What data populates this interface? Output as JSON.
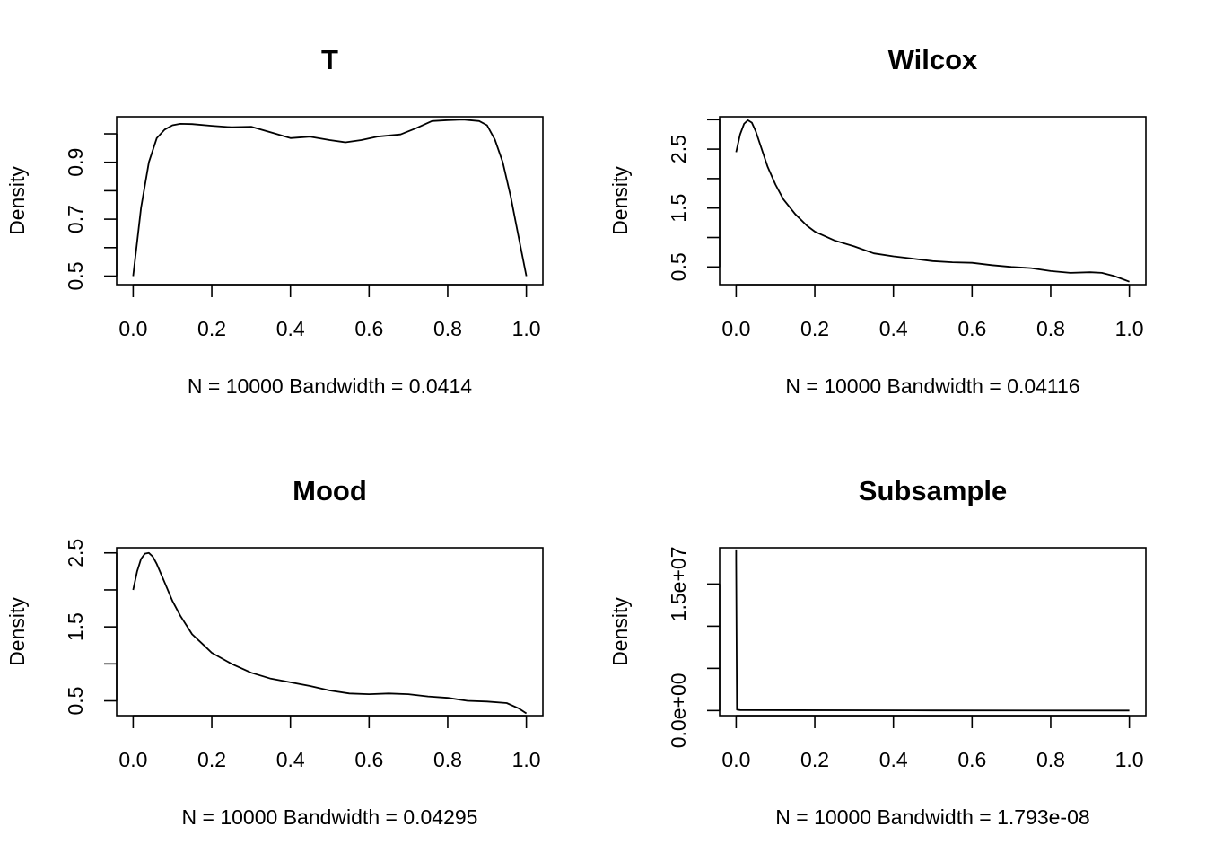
{
  "chart_data": [
    {
      "type": "line",
      "title": "T",
      "xlabel": "N = 10000   Bandwidth = 0.0414",
      "ylabel": "Density",
      "xlim": [
        -0.042,
        1.042
      ],
      "ylim": [
        0.47,
        1.06
      ],
      "x_ticks": [
        0,
        0.2,
        0.4,
        0.6,
        0.8,
        1.0
      ],
      "x_tick_labels": [
        "0.0",
        "0.2",
        "0.4",
        "0.6",
        "0.8",
        "1.0"
      ],
      "y_ticks": [
        0.5,
        0.6,
        0.7,
        0.8,
        0.9,
        1.0
      ],
      "y_tick_labels": [
        "0.5",
        "",
        "0.7",
        "",
        "0.9",
        ""
      ],
      "series": [
        {
          "x": [
            0,
            0.02,
            0.04,
            0.06,
            0.08,
            0.1,
            0.12,
            0.15,
            0.2,
            0.25,
            0.3,
            0.35,
            0.4,
            0.45,
            0.5,
            0.54,
            0.58,
            0.62,
            0.68,
            0.72,
            0.76,
            0.8,
            0.84,
            0.88,
            0.9,
            0.92,
            0.94,
            0.96,
            0.98,
            1.0
          ],
          "y": [
            0.5,
            0.74,
            0.9,
            0.985,
            1.015,
            1.03,
            1.035,
            1.034,
            1.028,
            1.023,
            1.025,
            1.005,
            0.985,
            0.99,
            0.978,
            0.97,
            0.978,
            0.99,
            0.998,
            1.02,
            1.045,
            1.048,
            1.05,
            1.045,
            1.03,
            0.98,
            0.9,
            0.78,
            0.64,
            0.5
          ]
        }
      ]
    },
    {
      "type": "line",
      "title": "Wilcox",
      "xlabel": "N = 10000   Bandwidth = 0.04116",
      "ylabel": "Density",
      "xlim": [
        -0.042,
        1.042
      ],
      "ylim": [
        0.2,
        3.05
      ],
      "x_ticks": [
        0,
        0.2,
        0.4,
        0.6,
        0.8,
        1.0
      ],
      "x_tick_labels": [
        "0.0",
        "0.2",
        "0.4",
        "0.6",
        "0.8",
        "1.0"
      ],
      "y_ticks": [
        0.5,
        1.0,
        1.5,
        2.0,
        2.5,
        3.0
      ],
      "y_tick_labels": [
        "0.5",
        "",
        "1.5",
        "",
        "2.5",
        ""
      ],
      "series": [
        {
          "x": [
            0,
            0.01,
            0.02,
            0.03,
            0.04,
            0.05,
            0.06,
            0.08,
            0.1,
            0.12,
            0.15,
            0.18,
            0.2,
            0.25,
            0.3,
            0.35,
            0.4,
            0.45,
            0.5,
            0.55,
            0.6,
            0.65,
            0.7,
            0.75,
            0.8,
            0.85,
            0.9,
            0.93,
            0.96,
            0.98,
            1.0
          ],
          "y": [
            2.45,
            2.75,
            2.93,
            2.99,
            2.95,
            2.8,
            2.6,
            2.2,
            1.9,
            1.65,
            1.4,
            1.2,
            1.1,
            0.95,
            0.85,
            0.73,
            0.68,
            0.64,
            0.6,
            0.58,
            0.57,
            0.53,
            0.5,
            0.48,
            0.43,
            0.4,
            0.41,
            0.4,
            0.35,
            0.3,
            0.25
          ]
        }
      ]
    },
    {
      "type": "line",
      "title": "Mood",
      "xlabel": "N = 10000   Bandwidth = 0.04295",
      "ylabel": "Density",
      "xlim": [
        -0.042,
        1.042
      ],
      "ylim": [
        0.3,
        2.57
      ],
      "x_ticks": [
        0,
        0.2,
        0.4,
        0.6,
        0.8,
        1.0
      ],
      "x_tick_labels": [
        "0.0",
        "0.2",
        "0.4",
        "0.6",
        "0.8",
        "1.0"
      ],
      "y_ticks": [
        0.5,
        1.0,
        1.5,
        2.0,
        2.5
      ],
      "y_tick_labels": [
        "0.5",
        "",
        "1.5",
        "",
        "2.5"
      ],
      "series": [
        {
          "x": [
            0,
            0.01,
            0.02,
            0.03,
            0.04,
            0.05,
            0.06,
            0.08,
            0.1,
            0.12,
            0.15,
            0.18,
            0.2,
            0.25,
            0.3,
            0.35,
            0.4,
            0.45,
            0.5,
            0.55,
            0.6,
            0.65,
            0.7,
            0.75,
            0.8,
            0.85,
            0.9,
            0.95,
            0.98,
            1.0
          ],
          "y": [
            2.0,
            2.25,
            2.42,
            2.49,
            2.5,
            2.45,
            2.35,
            2.1,
            1.85,
            1.65,
            1.4,
            1.25,
            1.15,
            1.0,
            0.88,
            0.8,
            0.75,
            0.7,
            0.64,
            0.6,
            0.59,
            0.6,
            0.59,
            0.56,
            0.54,
            0.5,
            0.49,
            0.47,
            0.4,
            0.33
          ]
        }
      ]
    },
    {
      "type": "line",
      "title": "Subsample",
      "xlabel": "N = 10000   Bandwidth = 1.793e-08",
      "ylabel": "Density",
      "xlim": [
        -0.042,
        1.042
      ],
      "ylim": [
        -600000,
        19300000
      ],
      "x_ticks": [
        0,
        0.2,
        0.4,
        0.6,
        0.8,
        1.0
      ],
      "x_tick_labels": [
        "0.0",
        "0.2",
        "0.4",
        "0.6",
        "0.8",
        "1.0"
      ],
      "y_ticks": [
        0,
        5000000,
        10000000,
        15000000
      ],
      "y_tick_labels": [
        "0.0e+00",
        "",
        "",
        "1.5e+07"
      ],
      "series": [
        {
          "x": [
            0,
            0,
            0.002,
            0.01,
            0.5,
            1.0
          ],
          "y": [
            19100000,
            18000000,
            100000,
            60000,
            20000,
            10000
          ]
        }
      ]
    }
  ]
}
